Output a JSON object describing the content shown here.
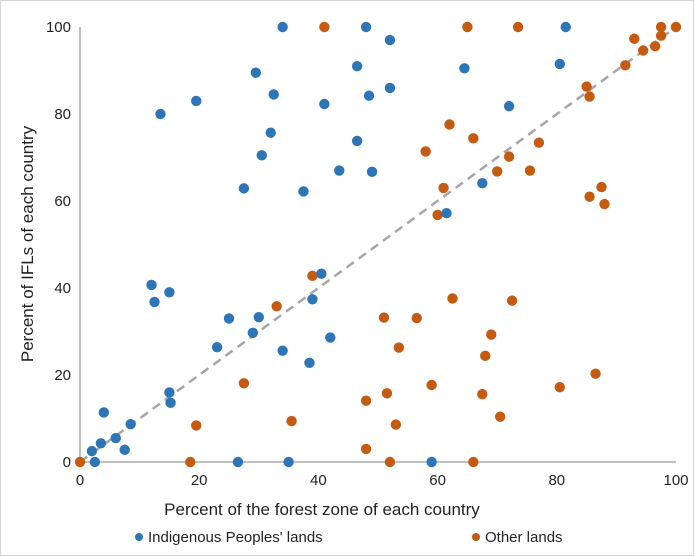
{
  "chart_data": {
    "type": "scatter",
    "title": "",
    "xlabel": "Percent of the forest zone of each country",
    "ylabel": "Percent of IFLs of each country",
    "xlim": [
      0,
      100
    ],
    "ylim": [
      0,
      100
    ],
    "xticks": [
      0,
      20,
      40,
      60,
      80,
      100
    ],
    "yticks": [
      0,
      20,
      40,
      60,
      80,
      100
    ],
    "grid": false,
    "legend_position": "bottom",
    "reference_line": {
      "style": "dashed",
      "color": "#a6a6a6",
      "from": [
        0,
        0
      ],
      "to": [
        100,
        100
      ]
    },
    "series": [
      {
        "name": "Indigenous Peoples' lands",
        "color": "#2e75b6",
        "x": [
          34,
          48,
          52,
          46.5,
          64.5,
          81.5,
          80.5,
          29.5,
          32.5,
          13.5,
          19.5,
          41,
          48.5,
          52,
          72,
          32,
          30.5,
          46.5,
          43.5,
          49,
          27.5,
          37.5,
          67.5,
          61.5,
          12,
          15,
          12.5,
          40.5,
          39,
          25,
          30,
          42,
          23,
          29,
          34,
          38.5,
          15,
          15.2,
          4,
          8.5,
          6,
          3.5,
          7.5,
          2,
          2.5,
          26.5,
          35,
          59
        ],
        "y": [
          100,
          100,
          97,
          91,
          90.5,
          100,
          91.5,
          89.5,
          84.5,
          80,
          83,
          82.3,
          84.2,
          86,
          81.8,
          75.7,
          70.5,
          73.8,
          67,
          66.7,
          62.9,
          62.2,
          64.1,
          57.2,
          40.7,
          39,
          36.8,
          43.3,
          37.4,
          33,
          33.3,
          28.6,
          26.4,
          29.7,
          25.6,
          22.8,
          16,
          13.6,
          11.4,
          8.7,
          5.5,
          4.3,
          2.8,
          2.5,
          0,
          0,
          0,
          0
        ]
      },
      {
        "name": "Other lands",
        "color": "#c55a11",
        "x": [
          41,
          65,
          73.5,
          97.5,
          100,
          93,
          94.5,
          97.5,
          96.5,
          91.5,
          85,
          85.5,
          62,
          66,
          58,
          72,
          77,
          70,
          75.5,
          61,
          60,
          85.5,
          87.5,
          88,
          39,
          33,
          62.5,
          51,
          56.5,
          53.5,
          72.5,
          69,
          68,
          27.5,
          59,
          80.5,
          86.5,
          51.5,
          48,
          67.5,
          70.5,
          35.5,
          53,
          19.5,
          48,
          52,
          18.5,
          66,
          0
        ],
        "y": [
          100,
          100,
          100,
          100,
          100,
          97.3,
          94.6,
          98,
          95.6,
          91.2,
          86.3,
          84,
          77.6,
          74.4,
          71.4,
          70.2,
          73.4,
          66.8,
          67,
          63,
          56.8,
          61,
          63.2,
          59.3,
          42.8,
          35.8,
          37.6,
          33.2,
          33.1,
          26.3,
          37.1,
          29.3,
          24.4,
          18.1,
          17.7,
          17.2,
          20.3,
          15.8,
          14.1,
          15.6,
          10.4,
          9.4,
          8.6,
          8.4,
          3,
          0,
          0,
          0,
          0
        ]
      }
    ]
  }
}
